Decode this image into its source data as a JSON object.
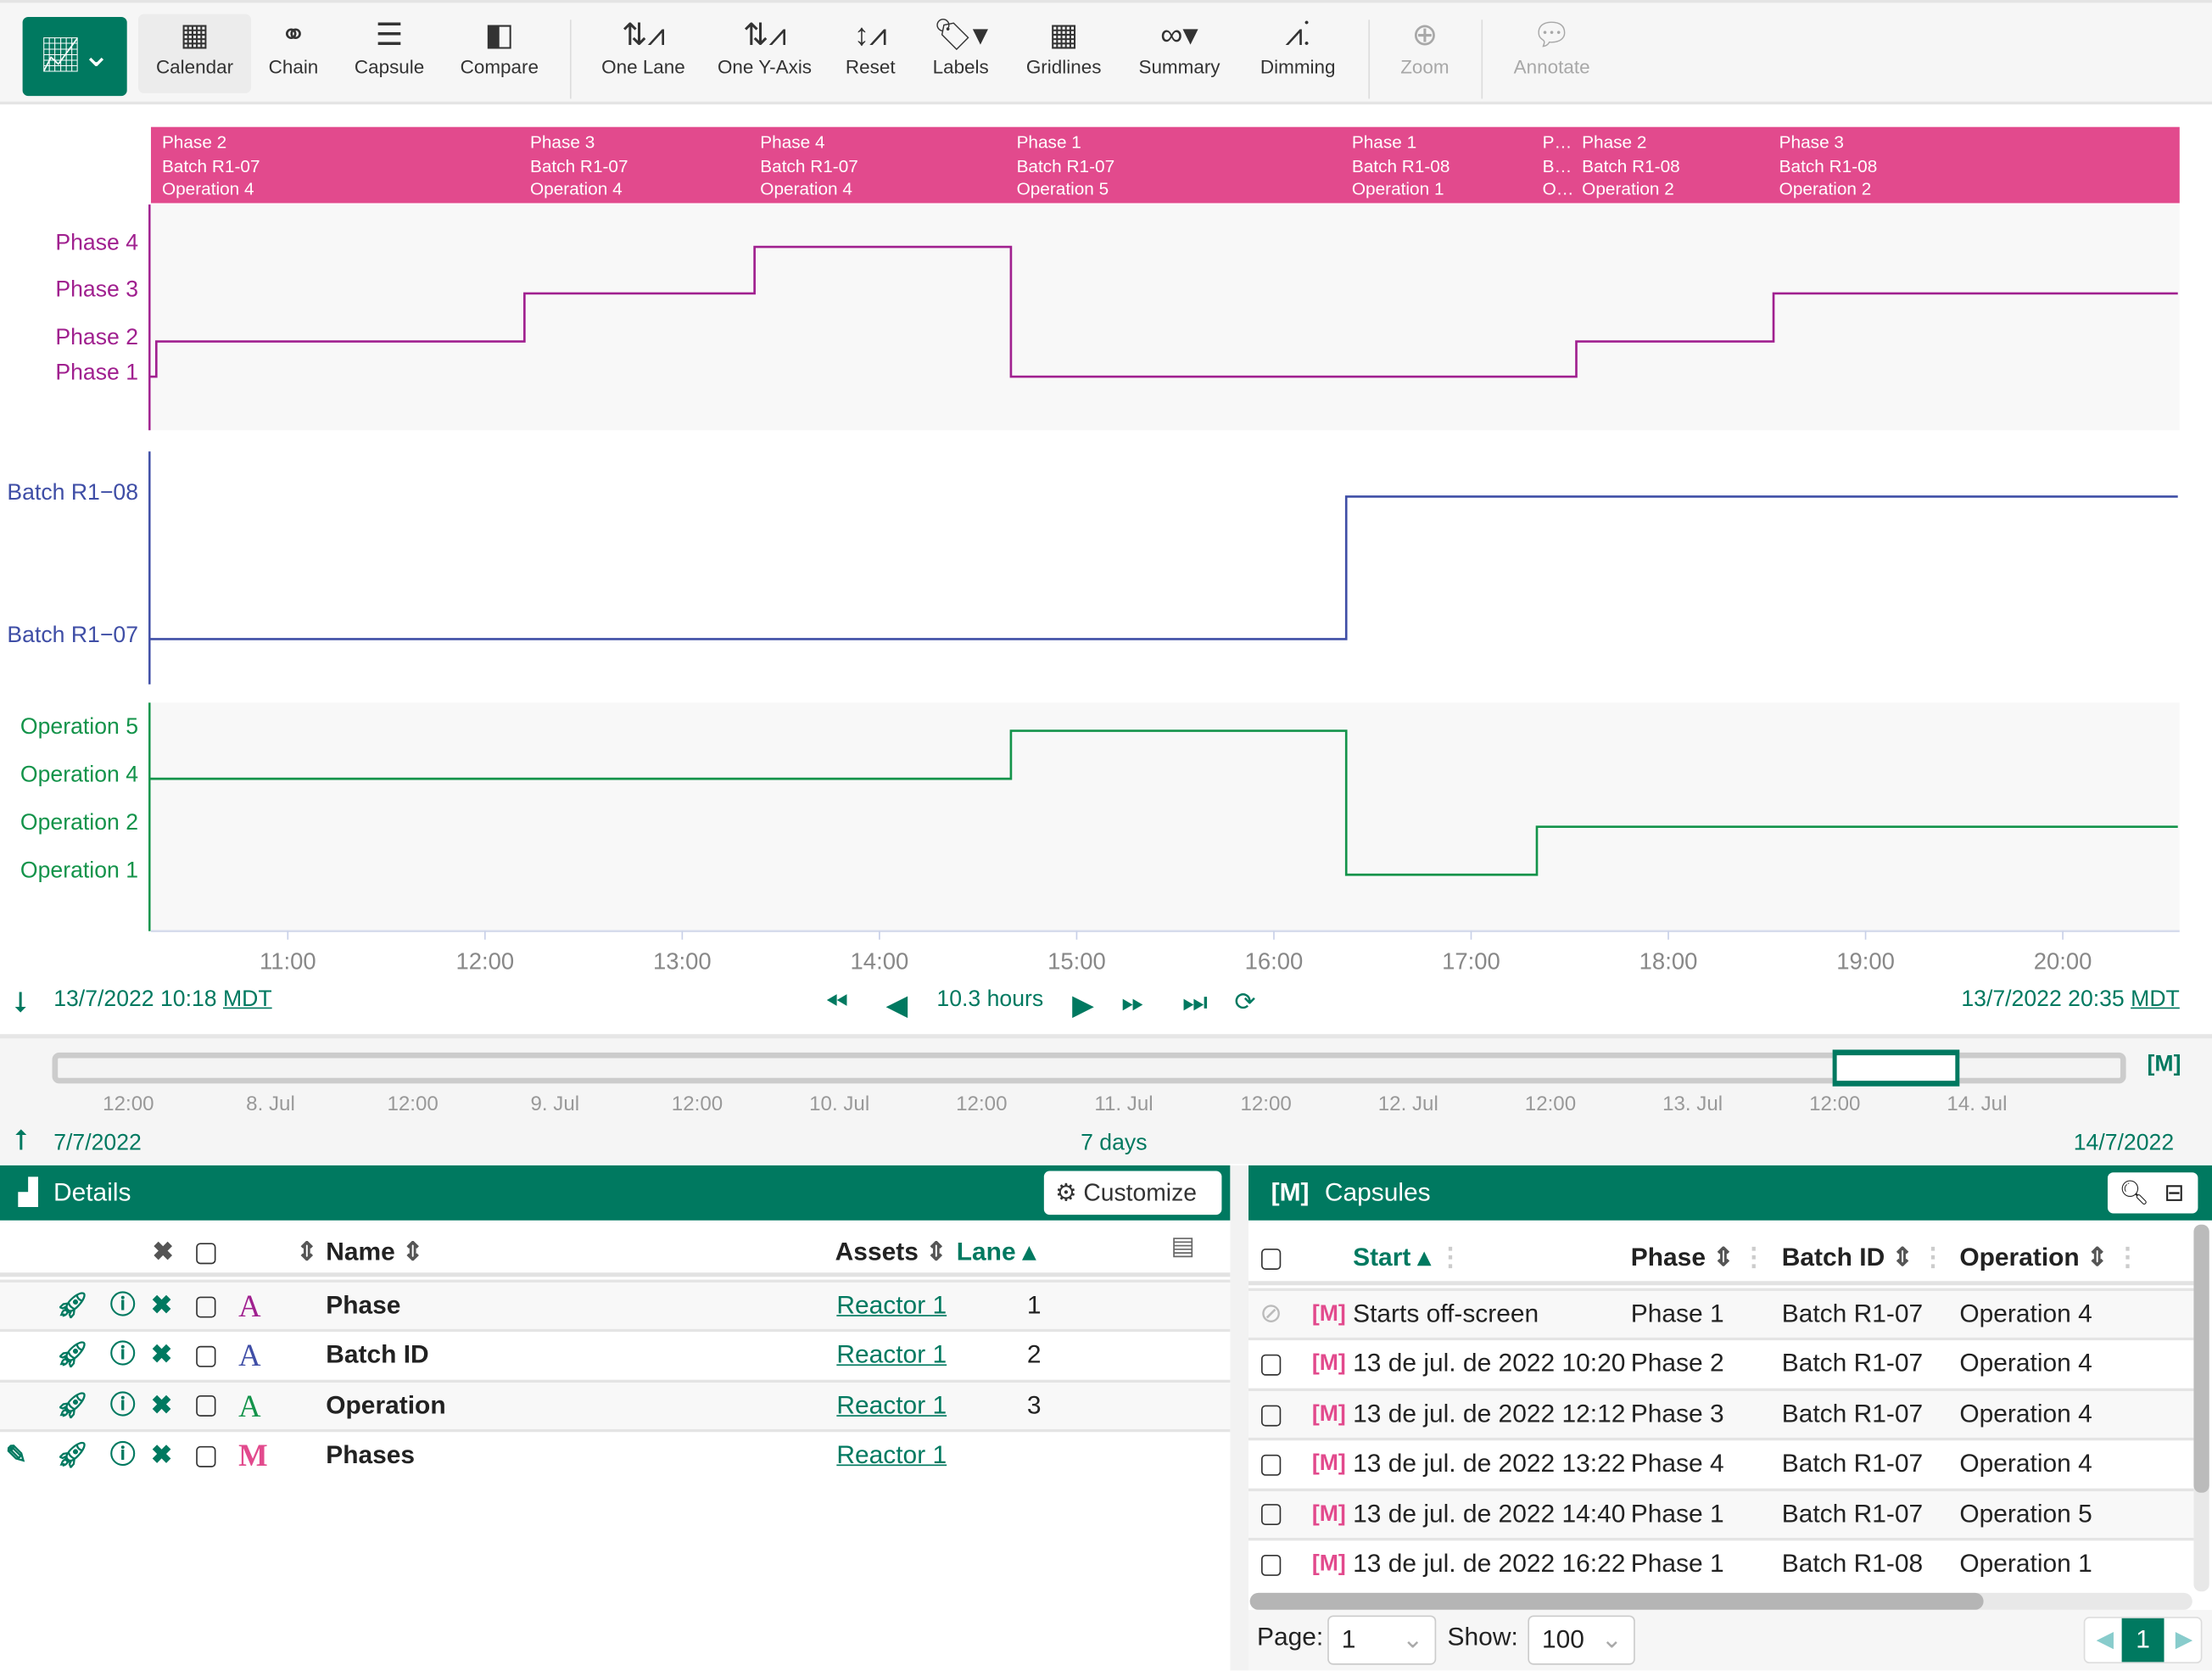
{
  "toolbar": {
    "logo_icon": "trend-chart-icon",
    "buttons": [
      {
        "label": "Calendar",
        "icon": "calendar-icon",
        "active": true
      },
      {
        "label": "Chain",
        "icon": "chain-icon"
      },
      {
        "label": "Capsule",
        "icon": "capsule-icon"
      },
      {
        "label": "Compare",
        "icon": "compare-icon"
      },
      {
        "label": "One Lane",
        "icon": "one-lane-icon"
      },
      {
        "label": "One Y-Axis",
        "icon": "one-y-axis-icon"
      },
      {
        "label": "Reset",
        "icon": "reset-icon"
      },
      {
        "label": "Labels",
        "icon": "tag-icon"
      },
      {
        "label": "Gridlines",
        "icon": "grid-icon"
      },
      {
        "label": "Summary",
        "icon": "binoculars-icon"
      },
      {
        "label": "Dimming",
        "icon": "dimming-icon"
      },
      {
        "label": "Zoom",
        "icon": "zoom-in-icon",
        "disabled": true
      },
      {
        "label": "Annotate",
        "icon": "comment-icon",
        "disabled": true
      }
    ]
  },
  "colors": {
    "accent": "#007960",
    "capsule": "#e24a8d",
    "phase": "#a0208f",
    "batch": "#3f4ea6",
    "operation": "#13934a"
  },
  "chart_data": {
    "type": "line",
    "step": true,
    "x_range": [
      "10:18",
      "20:35"
    ],
    "x_ticks": [
      "11:00",
      "12:00",
      "13:00",
      "14:00",
      "15:00",
      "16:00",
      "17:00",
      "18:00",
      "19:00",
      "20:00"
    ],
    "capsules": [
      {
        "start": "10:20",
        "lines": [
          "Phase 2",
          "Batch R1-07",
          "Operation 4"
        ]
      },
      {
        "start": "12:12",
        "lines": [
          "Phase 3",
          "Batch R1-07",
          "Operation 4"
        ]
      },
      {
        "start": "13:22",
        "lines": [
          "Phase 4",
          "Batch R1-07",
          "Operation 4"
        ]
      },
      {
        "start": "14:40",
        "lines": [
          "Phase 1",
          "Batch R1-07",
          "Operation 5"
        ]
      },
      {
        "start": "16:22",
        "lines": [
          "Phase 1",
          "Batch R1-08",
          "Operation 1"
        ]
      },
      {
        "start": "17:20",
        "lines": [
          "P…",
          "B…",
          "O…"
        ]
      },
      {
        "start": "17:32",
        "lines": [
          "Phase 2",
          "Batch R1-08",
          "Operation 2"
        ]
      },
      {
        "start": "18:32",
        "lines": [
          "Phase 3",
          "Batch R1-08",
          "Operation 2"
        ]
      }
    ],
    "lanes": [
      {
        "name": "Phase",
        "color": "#a0208f",
        "levels": [
          "Phase 1",
          "Phase 2",
          "Phase 3",
          "Phase 4"
        ],
        "points": [
          [
            "10:18",
            "Phase 1"
          ],
          [
            "10:20",
            "Phase 2"
          ],
          [
            "12:12",
            "Phase 3"
          ],
          [
            "13:22",
            "Phase 4"
          ],
          [
            "14:40",
            "Phase 1"
          ],
          [
            "17:32",
            "Phase 2"
          ],
          [
            "18:32",
            "Phase 3"
          ],
          [
            "20:35",
            "Phase 3"
          ]
        ]
      },
      {
        "name": "Batch ID",
        "color": "#3f4ea6",
        "levels": [
          "Batch R1−07",
          "Batch R1−08"
        ],
        "points": [
          [
            "10:18",
            "Batch R1−07"
          ],
          [
            "16:22",
            "Batch R1−08"
          ],
          [
            "20:35",
            "Batch R1−08"
          ]
        ]
      },
      {
        "name": "Operation",
        "color": "#13934a",
        "levels": [
          "Operation 1",
          "Operation 2",
          "Operation 4",
          "Operation 5"
        ],
        "points": [
          [
            "10:18",
            "Operation 4"
          ],
          [
            "14:40",
            "Operation 5"
          ],
          [
            "16:22",
            "Operation 1"
          ],
          [
            "17:20",
            "Operation 2"
          ],
          [
            "20:35",
            "Operation 2"
          ]
        ]
      }
    ]
  },
  "timebar": {
    "start": "13/7/2022 10:18",
    "end": "13/7/2022 20:35",
    "tz": "MDT",
    "duration": "10.3 hours"
  },
  "minimap": {
    "ticks": [
      "12:00",
      "8. Jul",
      "12:00",
      "9. Jul",
      "12:00",
      "10. Jul",
      "12:00",
      "11. Jul",
      "12:00",
      "12. Jul",
      "12:00",
      "13. Jul",
      "12:00",
      "14. Jul"
    ],
    "start": "7/7/2022",
    "end": "14/7/2022",
    "duration": "7 days",
    "selection": [
      0.8585,
      0.9195
    ]
  },
  "details": {
    "title": "Details",
    "customize": "Customize",
    "headers": {
      "name": "Name",
      "assets": "Assets",
      "lane": "Lane"
    },
    "rows": [
      {
        "name": "Phase",
        "asset": "Reactor 1",
        "lane": "1",
        "color": "#a0208f",
        "type": "A"
      },
      {
        "name": "Batch ID",
        "asset": "Reactor 1",
        "lane": "2",
        "color": "#3f4ea6",
        "type": "A"
      },
      {
        "name": "Operation",
        "asset": "Reactor 1",
        "lane": "3",
        "color": "#13934a",
        "type": "A"
      },
      {
        "name": "Phases",
        "asset": "Reactor 1",
        "lane": "",
        "color": "#e24a8d",
        "type": "capsule"
      }
    ]
  },
  "capsules": {
    "title": "Capsules",
    "headers": {
      "start": "Start",
      "phase": "Phase",
      "batch": "Batch ID",
      "operation": "Operation"
    },
    "rows": [
      {
        "start": "Starts off-screen",
        "phase": "Phase 1",
        "batch": "Batch R1-07",
        "operation": "Operation 4",
        "offscreen": true
      },
      {
        "start": "13 de jul. de 2022 10:20",
        "phase": "Phase 2",
        "batch": "Batch R1-07",
        "operation": "Operation 4"
      },
      {
        "start": "13 de jul. de 2022 12:12",
        "phase": "Phase 3",
        "batch": "Batch R1-07",
        "operation": "Operation 4"
      },
      {
        "start": "13 de jul. de 2022 13:22",
        "phase": "Phase 4",
        "batch": "Batch R1-07",
        "operation": "Operation 4"
      },
      {
        "start": "13 de jul. de 2022 14:40",
        "phase": "Phase 1",
        "batch": "Batch R1-07",
        "operation": "Operation 5"
      },
      {
        "start": "13 de jul. de 2022 16:22",
        "phase": "Phase 1",
        "batch": "Batch R1-08",
        "operation": "Operation 1"
      }
    ],
    "page_label": "Page:",
    "page": "1",
    "show_label": "Show:",
    "show": "100",
    "current_page": "1"
  }
}
